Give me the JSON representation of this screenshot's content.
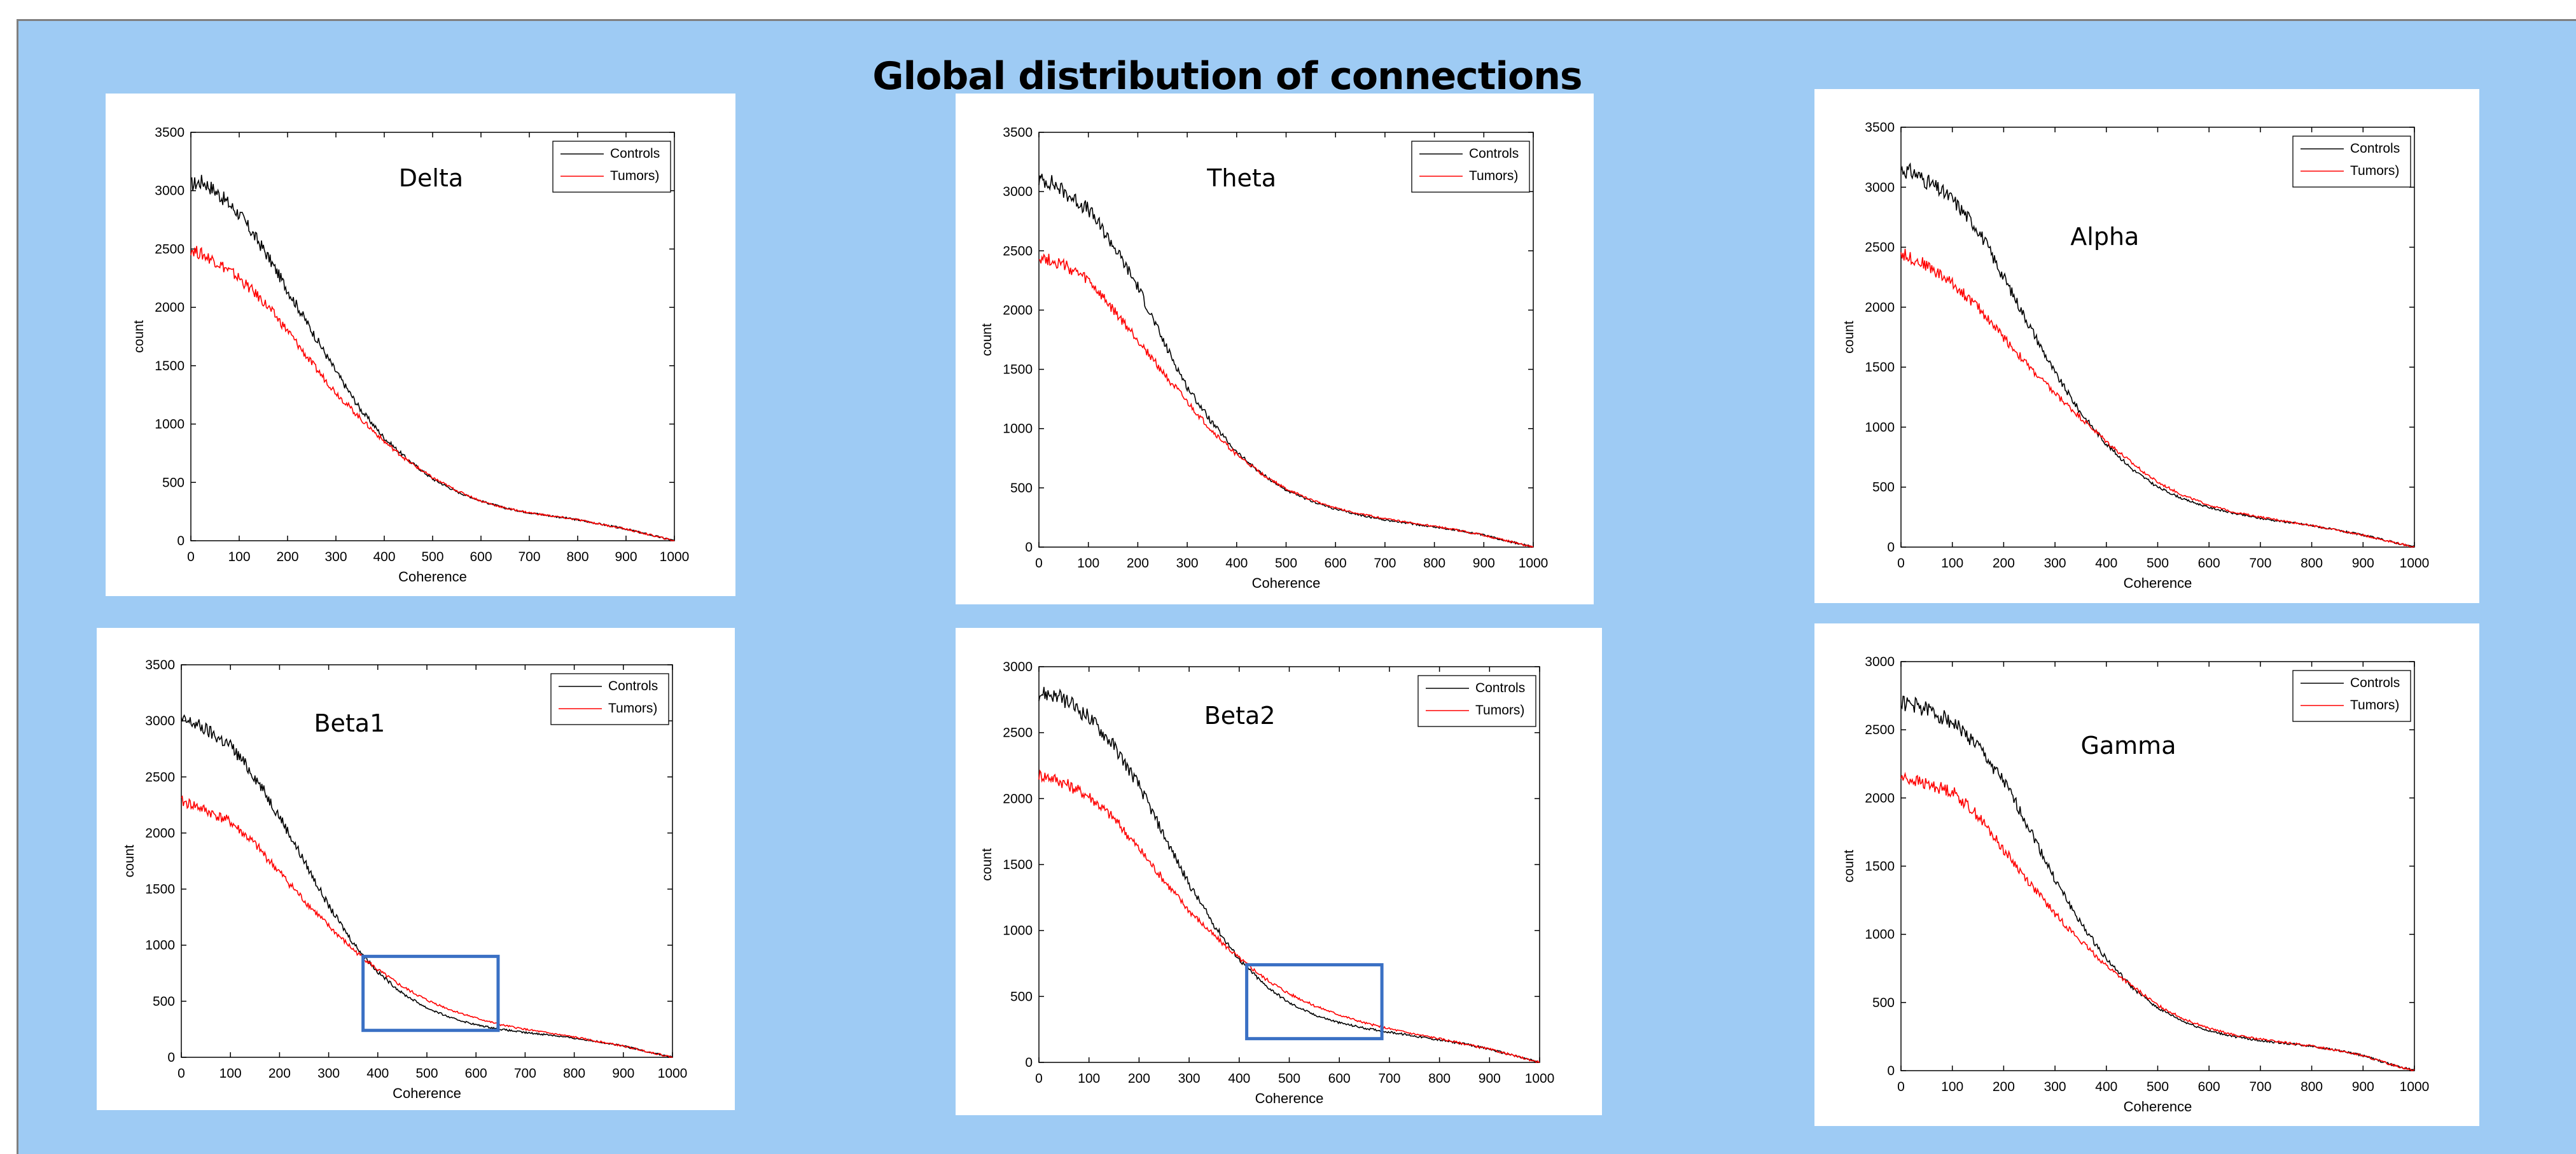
{
  "title": "Global distribution of connections",
  "colors": {
    "background": "#9ecbf4",
    "controls": "#000000",
    "tumors": "#ff0000",
    "highlight": "#3a70c4"
  },
  "chart_data": [
    {
      "id": "delta",
      "type": "line",
      "annotation": "Delta",
      "xlabel": "Coherence",
      "ylabel": "count",
      "xlim": [
        0,
        1000
      ],
      "ylim": [
        0,
        3500
      ],
      "xticks": [
        0,
        100,
        200,
        300,
        400,
        500,
        600,
        700,
        800,
        900,
        1000
      ],
      "yticks": [
        0,
        500,
        1000,
        1500,
        2000,
        2500,
        3000,
        3500
      ],
      "legend_position": "top-right",
      "series": [
        {
          "name": "Controls",
          "color": "#000000",
          "x": [
            0,
            25,
            50,
            100,
            150,
            200,
            250,
            300,
            350,
            400,
            450,
            500,
            550,
            600,
            650,
            700,
            750,
            800,
            850,
            900,
            950,
            1000
          ],
          "y": [
            3050,
            3080,
            3000,
            2800,
            2500,
            2150,
            1800,
            1450,
            1130,
            880,
            690,
            530,
            420,
            340,
            280,
            240,
            210,
            180,
            140,
            100,
            50,
            0
          ]
        },
        {
          "name": "Tumors)",
          "color": "#ff0000",
          "x": [
            0,
            25,
            50,
            100,
            150,
            200,
            250,
            300,
            350,
            400,
            450,
            500,
            550,
            600,
            650,
            700,
            750,
            800,
            850,
            900,
            950,
            1000
          ],
          "y": [
            2500,
            2450,
            2400,
            2250,
            2050,
            1800,
            1520,
            1270,
            1050,
            850,
            680,
            540,
            430,
            340,
            280,
            240,
            210,
            180,
            140,
            100,
            50,
            0
          ]
        }
      ]
    },
    {
      "id": "theta",
      "type": "line",
      "annotation": "Theta",
      "xlabel": "Coherence",
      "ylabel": "count",
      "xlim": [
        0,
        1000
      ],
      "ylim": [
        0,
        3500
      ],
      "xticks": [
        0,
        100,
        200,
        300,
        400,
        500,
        600,
        700,
        800,
        900,
        1000
      ],
      "yticks": [
        0,
        500,
        1000,
        1500,
        2000,
        2500,
        3000,
        3500
      ],
      "legend_position": "top-right",
      "series": [
        {
          "name": "Controls",
          "color": "#000000",
          "x": [
            0,
            25,
            50,
            100,
            150,
            200,
            250,
            300,
            350,
            400,
            450,
            500,
            550,
            600,
            650,
            700,
            750,
            800,
            850,
            900,
            950,
            1000
          ],
          "y": [
            3100,
            3080,
            3000,
            2850,
            2550,
            2200,
            1750,
            1350,
            1050,
            800,
            620,
            480,
            390,
            320,
            270,
            230,
            200,
            170,
            140,
            100,
            50,
            0
          ]
        },
        {
          "name": "Tumors)",
          "color": "#ff0000",
          "x": [
            0,
            25,
            50,
            100,
            150,
            200,
            250,
            300,
            350,
            400,
            450,
            500,
            550,
            600,
            650,
            700,
            750,
            800,
            850,
            900,
            950,
            1000
          ],
          "y": [
            2450,
            2420,
            2380,
            2250,
            2000,
            1750,
            1480,
            1220,
            980,
            780,
            620,
            490,
            400,
            330,
            280,
            240,
            205,
            175,
            140,
            100,
            50,
            0
          ]
        }
      ]
    },
    {
      "id": "alpha",
      "type": "line",
      "annotation": "Alpha",
      "xlabel": "Coherence",
      "ylabel": "count",
      "xlim": [
        0,
        1000
      ],
      "ylim": [
        0,
        3500
      ],
      "xticks": [
        0,
        100,
        200,
        300,
        400,
        500,
        600,
        700,
        800,
        900,
        1000
      ],
      "yticks": [
        0,
        500,
        1000,
        1500,
        2000,
        2500,
        3000,
        3500
      ],
      "legend_position": "top-right",
      "series": [
        {
          "name": "Controls",
          "color": "#000000",
          "x": [
            0,
            25,
            50,
            100,
            150,
            200,
            250,
            300,
            350,
            400,
            450,
            500,
            550,
            600,
            650,
            700,
            750,
            800,
            850,
            900,
            950,
            1000
          ],
          "y": [
            3150,
            3120,
            3050,
            2900,
            2650,
            2250,
            1850,
            1450,
            1120,
            860,
            650,
            500,
            400,
            330,
            280,
            240,
            210,
            180,
            140,
            100,
            50,
            0
          ]
        },
        {
          "name": "Tumors)",
          "color": "#ff0000",
          "x": [
            0,
            25,
            50,
            100,
            150,
            200,
            250,
            300,
            350,
            400,
            450,
            500,
            550,
            600,
            650,
            700,
            750,
            800,
            850,
            900,
            950,
            1000
          ],
          "y": [
            2450,
            2400,
            2350,
            2200,
            2000,
            1750,
            1500,
            1280,
            1080,
            880,
            700,
            540,
            430,
            350,
            290,
            250,
            215,
            180,
            140,
            100,
            50,
            0
          ]
        }
      ]
    },
    {
      "id": "beta1",
      "type": "line",
      "annotation": "Beta1",
      "xlabel": "Coherence",
      "ylabel": "count",
      "xlim": [
        0,
        1000
      ],
      "ylim": [
        0,
        3500
      ],
      "xticks": [
        0,
        100,
        200,
        300,
        400,
        500,
        600,
        700,
        800,
        900,
        1000
      ],
      "yticks": [
        0,
        500,
        1000,
        1500,
        2000,
        2500,
        3000,
        3500
      ],
      "legend_position": "top-right",
      "highlight_box": {
        "x": [
          370,
          645
        ],
        "y": [
          240,
          900
        ]
      },
      "series": [
        {
          "name": "Controls",
          "color": "#000000",
          "x": [
            0,
            25,
            50,
            100,
            150,
            200,
            250,
            300,
            350,
            400,
            450,
            500,
            550,
            600,
            650,
            700,
            750,
            800,
            850,
            900,
            950,
            1000
          ],
          "y": [
            3000,
            2980,
            2920,
            2780,
            2500,
            2150,
            1750,
            1350,
            1020,
            760,
            570,
            440,
            350,
            290,
            250,
            220,
            200,
            170,
            140,
            100,
            50,
            0
          ]
        },
        {
          "name": "Tumors)",
          "color": "#ff0000",
          "x": [
            0,
            25,
            50,
            100,
            150,
            200,
            250,
            300,
            350,
            400,
            450,
            500,
            550,
            600,
            650,
            700,
            750,
            800,
            850,
            900,
            950,
            1000
          ],
          "y": [
            2280,
            2250,
            2200,
            2100,
            1900,
            1650,
            1400,
            1170,
            960,
            780,
            630,
            510,
            420,
            350,
            290,
            250,
            215,
            180,
            140,
            100,
            50,
            0
          ]
        }
      ]
    },
    {
      "id": "beta2",
      "type": "line",
      "annotation": "Beta2",
      "xlabel": "Coherence",
      "ylabel": "count",
      "xlim": [
        0,
        1000
      ],
      "ylim": [
        0,
        3000
      ],
      "xticks": [
        0,
        100,
        200,
        300,
        400,
        500,
        600,
        700,
        800,
        900,
        1000
      ],
      "yticks": [
        0,
        500,
        1000,
        1500,
        2000,
        2500,
        3000
      ],
      "legend_position": "top-right",
      "highlight_box": {
        "x": [
          415,
          685
        ],
        "y": [
          180,
          740
        ]
      },
      "series": [
        {
          "name": "Controls",
          "color": "#000000",
          "x": [
            0,
            25,
            50,
            100,
            150,
            200,
            250,
            300,
            350,
            400,
            450,
            500,
            550,
            600,
            650,
            700,
            750,
            800,
            850,
            900,
            950,
            1000
          ],
          "y": [
            2800,
            2790,
            2750,
            2620,
            2400,
            2100,
            1720,
            1350,
            1040,
            780,
            590,
            450,
            360,
            300,
            260,
            230,
            200,
            170,
            140,
            100,
            50,
            0
          ]
        },
        {
          "name": "Tumors)",
          "color": "#ff0000",
          "x": [
            0,
            25,
            50,
            100,
            150,
            200,
            250,
            300,
            350,
            400,
            450,
            500,
            550,
            600,
            650,
            700,
            750,
            800,
            850,
            900,
            950,
            1000
          ],
          "y": [
            2180,
            2160,
            2120,
            2020,
            1850,
            1620,
            1380,
            1150,
            960,
            790,
            640,
            520,
            430,
            360,
            300,
            255,
            215,
            180,
            140,
            100,
            50,
            0
          ]
        }
      ]
    },
    {
      "id": "gamma",
      "type": "line",
      "annotation": "Gamma",
      "xlabel": "Coherence",
      "ylabel": "count",
      "xlim": [
        0,
        1000
      ],
      "ylim": [
        0,
        3000
      ],
      "xticks": [
        0,
        100,
        200,
        300,
        400,
        500,
        600,
        700,
        800,
        900,
        1000
      ],
      "yticks": [
        0,
        500,
        1000,
        1500,
        2000,
        2500,
        3000
      ],
      "legend_position": "top-right",
      "series": [
        {
          "name": "Controls",
          "color": "#000000",
          "x": [
            0,
            25,
            50,
            100,
            150,
            200,
            250,
            300,
            350,
            400,
            450,
            500,
            550,
            600,
            650,
            700,
            750,
            800,
            850,
            900,
            950,
            1000
          ],
          "y": [
            2700,
            2680,
            2650,
            2560,
            2380,
            2120,
            1780,
            1400,
            1080,
            820,
            610,
            460,
            360,
            290,
            250,
            220,
            200,
            180,
            150,
            110,
            50,
            0
          ]
        },
        {
          "name": "Tumors)",
          "color": "#ff0000",
          "x": [
            0,
            25,
            50,
            100,
            150,
            200,
            250,
            300,
            350,
            400,
            450,
            500,
            550,
            600,
            650,
            700,
            750,
            800,
            850,
            900,
            950,
            1000
          ],
          "y": [
            2150,
            2130,
            2100,
            2050,
            1870,
            1620,
            1380,
            1150,
            950,
            770,
            620,
            480,
            380,
            310,
            260,
            230,
            205,
            180,
            150,
            110,
            50,
            0
          ]
        }
      ]
    }
  ]
}
